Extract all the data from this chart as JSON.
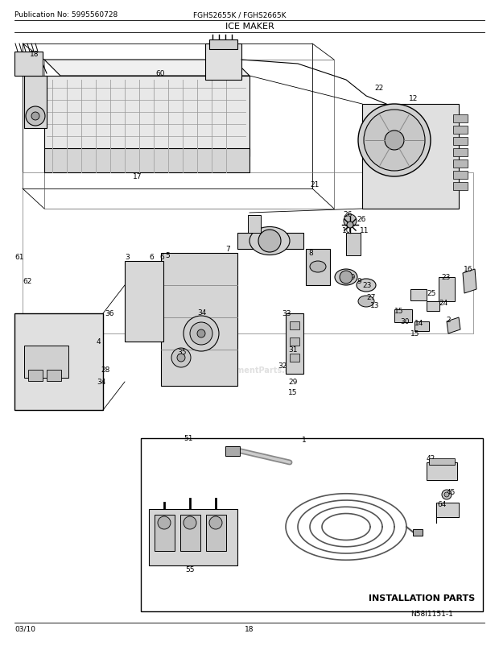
{
  "title": "ICE MAKER",
  "pub_no": "Publication No: 5995560728",
  "model": "FGHS2655K / FGHS2665K",
  "date": "03/10",
  "page": "18",
  "diagram_id": "N58I1151-1",
  "install_label": "INSTALLATION PARTS",
  "bg_color": "#ffffff",
  "border_color": "#000000",
  "text_color": "#000000",
  "fig_width": 6.2,
  "fig_height": 8.03,
  "dpi": 100
}
